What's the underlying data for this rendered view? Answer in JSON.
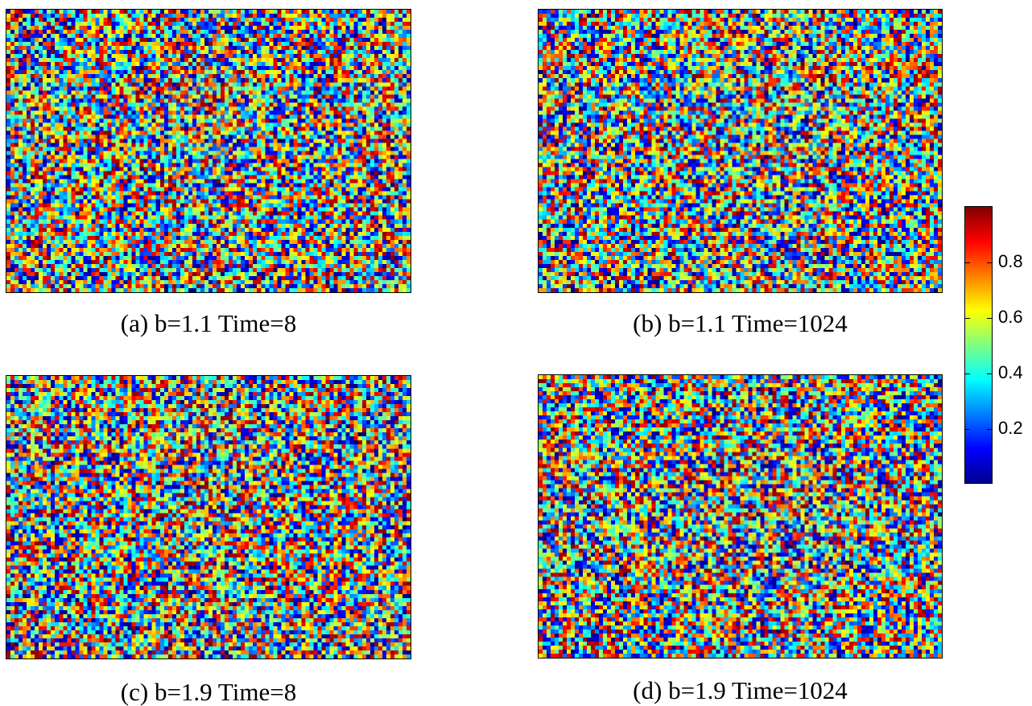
{
  "chart_data": [
    {
      "type": "heatmap",
      "caption": "(a) b=1.1 Time=8",
      "grid_cols": 100,
      "grid_rows": 70,
      "value_range": [
        0,
        1
      ],
      "colormap": "jet"
    },
    {
      "type": "heatmap",
      "caption": "(b) b=1.1 Time=1024",
      "grid_cols": 100,
      "grid_rows": 70,
      "value_range": [
        0,
        1
      ],
      "colormap": "jet"
    },
    {
      "type": "heatmap",
      "caption": "(c) b=1.9 Time=8",
      "grid_cols": 100,
      "grid_rows": 70,
      "value_range": [
        0,
        1
      ],
      "colormap": "jet"
    },
    {
      "type": "heatmap",
      "caption": "(d) b=1.9 Time=1024",
      "grid_cols": 100,
      "grid_rows": 70,
      "value_range": [
        0,
        1
      ],
      "colormap": "jet"
    }
  ],
  "colorbar": {
    "range": [
      0,
      1
    ],
    "ticks": [
      0.2,
      0.4,
      0.6,
      0.8
    ],
    "tick_labels": [
      "0.2",
      "0.4",
      "0.6",
      "0.8"
    ],
    "colormap": "jet"
  }
}
